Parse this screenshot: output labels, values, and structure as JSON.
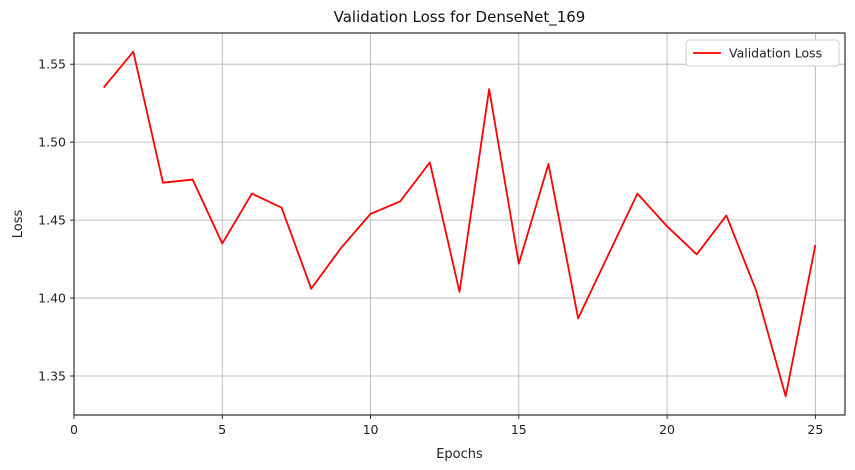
{
  "chart_data": {
    "type": "line",
    "title": "Validation Loss for DenseNet_169",
    "xlabel": "Epochs",
    "ylabel": "Loss",
    "xlim": [
      0,
      26
    ],
    "ylim": [
      1.325,
      1.57
    ],
    "xticks": [
      0,
      5,
      10,
      15,
      20,
      25
    ],
    "yticks": [
      1.35,
      1.4,
      1.45,
      1.5,
      1.55
    ],
    "grid": true,
    "legend_position": "top-right",
    "series": [
      {
        "name": "Validation Loss",
        "color": "#ff0000",
        "x": [
          1,
          2,
          3,
          4,
          5,
          6,
          7,
          8,
          9,
          10,
          11,
          12,
          13,
          14,
          15,
          16,
          17,
          18,
          19,
          20,
          21,
          22,
          23,
          24,
          25
        ],
        "y": [
          1.535,
          1.558,
          1.474,
          1.476,
          1.435,
          1.467,
          1.458,
          1.406,
          1.432,
          1.454,
          1.462,
          1.487,
          1.404,
          1.534,
          1.422,
          1.486,
          1.387,
          1.427,
          1.467,
          1.446,
          1.428,
          1.453,
          1.405,
          1.337,
          1.434
        ]
      }
    ]
  }
}
